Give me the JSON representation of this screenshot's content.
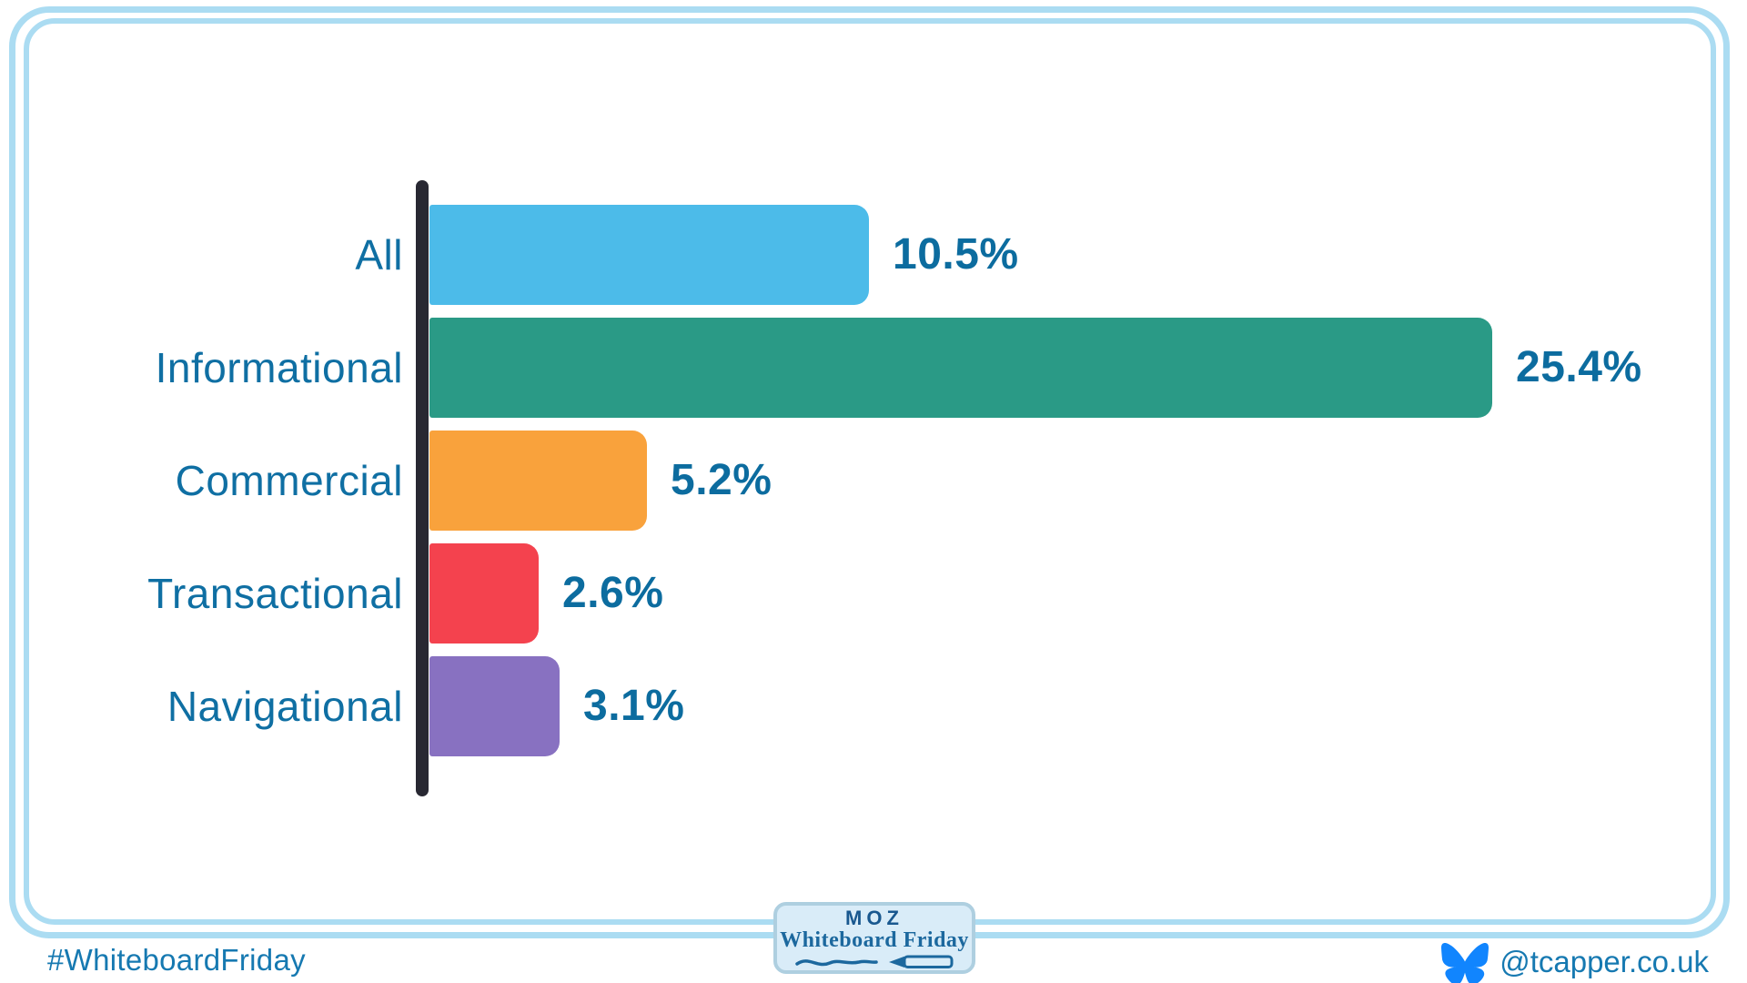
{
  "page": {
    "background": "#ffffff",
    "frame_color": "#ABDCF2"
  },
  "chart_data": {
    "type": "bar",
    "orientation": "horizontal",
    "title": "",
    "xlabel": "",
    "ylabel": "",
    "categories": [
      "All",
      "Informational",
      "Commercial",
      "Transactional",
      "Navigational"
    ],
    "values": [
      10.5,
      25.4,
      5.2,
      2.6,
      3.1
    ],
    "value_labels": [
      "10.5%",
      "25.4%",
      "5.2%",
      "2.6%",
      "3.1%"
    ],
    "bar_colors": [
      "#4CBBE9",
      "#2A9A86",
      "#F9A23C",
      "#F4424E",
      "#8871C1"
    ],
    "xlim": [
      0,
      26
    ],
    "grid": false,
    "legend": false,
    "axis_color": "#282832",
    "category_label_color": "#0F6FA3",
    "value_label_color": "#0C6C9F"
  },
  "footer": {
    "hashtag": "#WhiteboardFriday",
    "handle": "@tcapper.co.uk",
    "text_color": "#1679B1",
    "bluesky_color": "#1185FE",
    "logo": {
      "brand": "MOZ",
      "subtitle": "Whiteboard Friday",
      "brand_color": "#19588F",
      "accent_color": "#1C689E",
      "box_bg": "#D9ECF8",
      "box_border": "#AECFE0"
    }
  }
}
